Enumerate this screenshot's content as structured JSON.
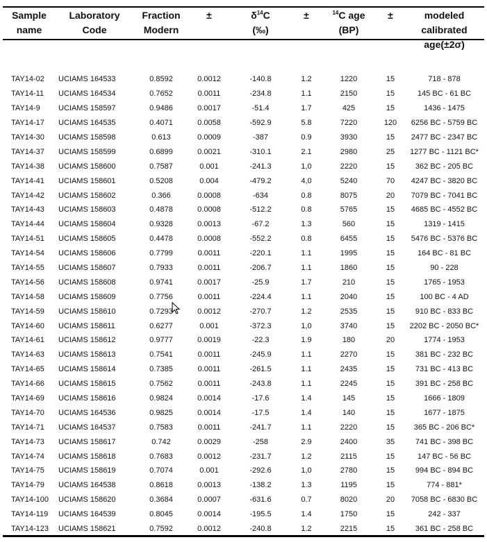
{
  "headers": [
    {
      "line1": "Sample",
      "line2": "name"
    },
    {
      "line1": "Laboratory",
      "line2": "Code"
    },
    {
      "line1": "Fraction",
      "line2": "Modern"
    },
    {
      "line1": "±",
      "line2": ""
    },
    {
      "line1_pre": "δ",
      "line1_sup": "14",
      "line1_post": "C",
      "line2": "(‰)"
    },
    {
      "line1": "±",
      "line2": ""
    },
    {
      "line1_sup": "14",
      "line1_post": "C age",
      "line2": "(BP)"
    },
    {
      "line1": "±",
      "line2": ""
    },
    {
      "line1": "modeled calibrated",
      "line2": "age(±2σ)"
    }
  ],
  "rows": [
    [
      "TAY14-02",
      "UCIAMS 164533",
      "0.8592",
      "0.0012",
      "-140.8",
      "1.2",
      "1220",
      "15",
      "718 - 878"
    ],
    [
      "TAY14-11",
      "UCIAMS 164534",
      "0.7652",
      "0.0011",
      "-234.8",
      "1.1",
      "2150",
      "15",
      "145 BC - 61 BC"
    ],
    [
      "TAY14-9",
      "UCIAMS 158597",
      "0.9486",
      "0.0017",
      "-51.4",
      "1.7",
      "425",
      "15",
      "1436 - 1475"
    ],
    [
      "TAY14-17",
      "UCIAMS 164535",
      "0.4071",
      "0.0058",
      "-592.9",
      "5.8",
      "7220",
      "120",
      "6256 BC - 5759 BC"
    ],
    [
      "TAY14-30",
      "UCIAMS 158598",
      "0.613",
      "0.0009",
      "-387",
      "0.9",
      "3930",
      "15",
      "2477 BC - 2347 BC"
    ],
    [
      "TAY14-37",
      "UCIAMS 158599",
      "0.6899",
      "0.0021",
      "-310.1",
      "2.1",
      "2980",
      "25",
      "1277 BC - 1121 BC*"
    ],
    [
      "TAY14-38",
      "UCIAMS 158600",
      "0.7587",
      "0.001",
      "-241.3",
      "1,0",
      "2220",
      "15",
      "362 BC - 205 BC"
    ],
    [
      "TAY14-41",
      "UCIAMS 158601",
      "0.5208",
      "0.004",
      "-479.2",
      "4,0",
      "5240",
      "70",
      "4247 BC - 3820 BC"
    ],
    [
      "TAY14-42",
      "UCIAMS 158602",
      "0.366",
      "0.0008",
      "-634",
      "0.8",
      "8075",
      "20",
      "7079 BC - 7041 BC"
    ],
    [
      "TAY14-43",
      "UCIAMS 158603",
      "0.4878",
      "0.0008",
      "-512.2",
      "0.8",
      "5765",
      "15",
      "4685 BC - 4552 BC"
    ],
    [
      "TAY14-44",
      "UCIAMS 158604",
      "0.9328",
      "0.0013",
      "-67.2",
      "1.3",
      "560",
      "15",
      "1319 - 1415"
    ],
    [
      "TAY14-51",
      "UCIAMS 158605",
      "0.4478",
      "0.0008",
      "-552.2",
      "0.8",
      "6455",
      "15",
      "5476 BC - 5376 BC"
    ],
    [
      "TAY14-54",
      "UCIAMS 158606",
      "0.7799",
      "0.0011",
      "-220.1",
      "1.1",
      "1995",
      "15",
      "164 BC - 81 BC"
    ],
    [
      "TAY14-55",
      "UCIAMS 158607",
      "0.7933",
      "0.0011",
      "-206.7",
      "1.1",
      "1860",
      "15",
      "90 - 228"
    ],
    [
      "TAY14-56",
      "UCIAMS 158608",
      "0.9741",
      "0.0017",
      "-25.9",
      "1.7",
      "210",
      "15",
      "1765 - 1953"
    ],
    [
      "TAY14-58",
      "UCIAMS 158609",
      "0.7756",
      "0.0011",
      "-224.4",
      "1.1",
      "2040",
      "15",
      "100 BC - 4 AD"
    ],
    [
      "TAY14-59",
      "UCIAMS 158610",
      "0.7293",
      "0.0012",
      "-270.7",
      "1.2",
      "2535",
      "15",
      "910 BC - 833 BC"
    ],
    [
      "TAY14-60",
      "UCIAMS 158611",
      "0.6277",
      "0.001",
      "-372.3",
      "1,0",
      "3740",
      "15",
      "2202 BC - 2050 BC*"
    ],
    [
      "TAY14-61",
      "UCIAMS 158612",
      "0.9777",
      "0.0019",
      "-22.3",
      "1.9",
      "180",
      "20",
      "1774 - 1953"
    ],
    [
      "TAY14-63",
      "UCIAMS 158613",
      "0.7541",
      "0.0011",
      "-245.9",
      "1.1",
      "2270",
      "15",
      "381 BC - 232 BC"
    ],
    [
      "TAY14-65",
      "UCIAMS 158614",
      "0.7385",
      "0.0011",
      "-261.5",
      "1.1",
      "2435",
      "15",
      "731 BC - 413 BC"
    ],
    [
      "TAY14-66",
      "UCIAMS 158615",
      "0.7562",
      "0.0011",
      "-243.8",
      "1.1",
      "2245",
      "15",
      "391 BC - 258 BC"
    ],
    [
      "TAY14-69",
      "UCIAMS 158616",
      "0.9824",
      "0.0014",
      "-17.6",
      "1.4",
      "145",
      "15",
      "1666 - 1809"
    ],
    [
      "TAY14-70",
      "UCIAMS 164536",
      "0.9825",
      "0.0014",
      "-17.5",
      "1.4",
      "140",
      "15",
      "1677 - 1875"
    ],
    [
      "TAY14-71",
      "UCIAMS 164537",
      "0.7583",
      "0.0011",
      "-241.7",
      "1.1",
      "2220",
      "15",
      "365 BC - 206 BC*"
    ],
    [
      "TAY14-73",
      "UCIAMS 158617",
      "0.742",
      "0.0029",
      "-258",
      "2.9",
      "2400",
      "35",
      "741 BC - 398 BC"
    ],
    [
      "TAY14-74",
      "UCIAMS 158618",
      "0.7683",
      "0.0012",
      "-231.7",
      "1.2",
      "2115",
      "15",
      "147 BC - 56 BC"
    ],
    [
      "TAY14-75",
      "UCIAMS 158619",
      "0.7074",
      "0.001",
      "-292.6",
      "1,0",
      "2780",
      "15",
      "994 BC - 894 BC"
    ],
    [
      "TAY14-79",
      "UCIAMS 164538",
      "0.8618",
      "0.0013",
      "-138.2",
      "1.3",
      "1195",
      "15",
      "774 - 881*"
    ],
    [
      "TAY14-100",
      "UCIAMS 158620",
      "0.3684",
      "0.0007",
      "-631.6",
      "0.7",
      "8020",
      "20",
      "7058 BC - 6830 BC"
    ],
    [
      "TAY14-119",
      "UCIAMS 164539",
      "0.8045",
      "0.0014",
      "-195.5",
      "1.4",
      "1750",
      "15",
      "242 - 337"
    ],
    [
      "TAY14-123",
      "UCIAMS 158621",
      "0.7592",
      "0.0012",
      "-240.8",
      "1.2",
      "2215",
      "15",
      "361 BC - 258 BC"
    ]
  ],
  "cursor_icon": "mouse-pointer-icon"
}
